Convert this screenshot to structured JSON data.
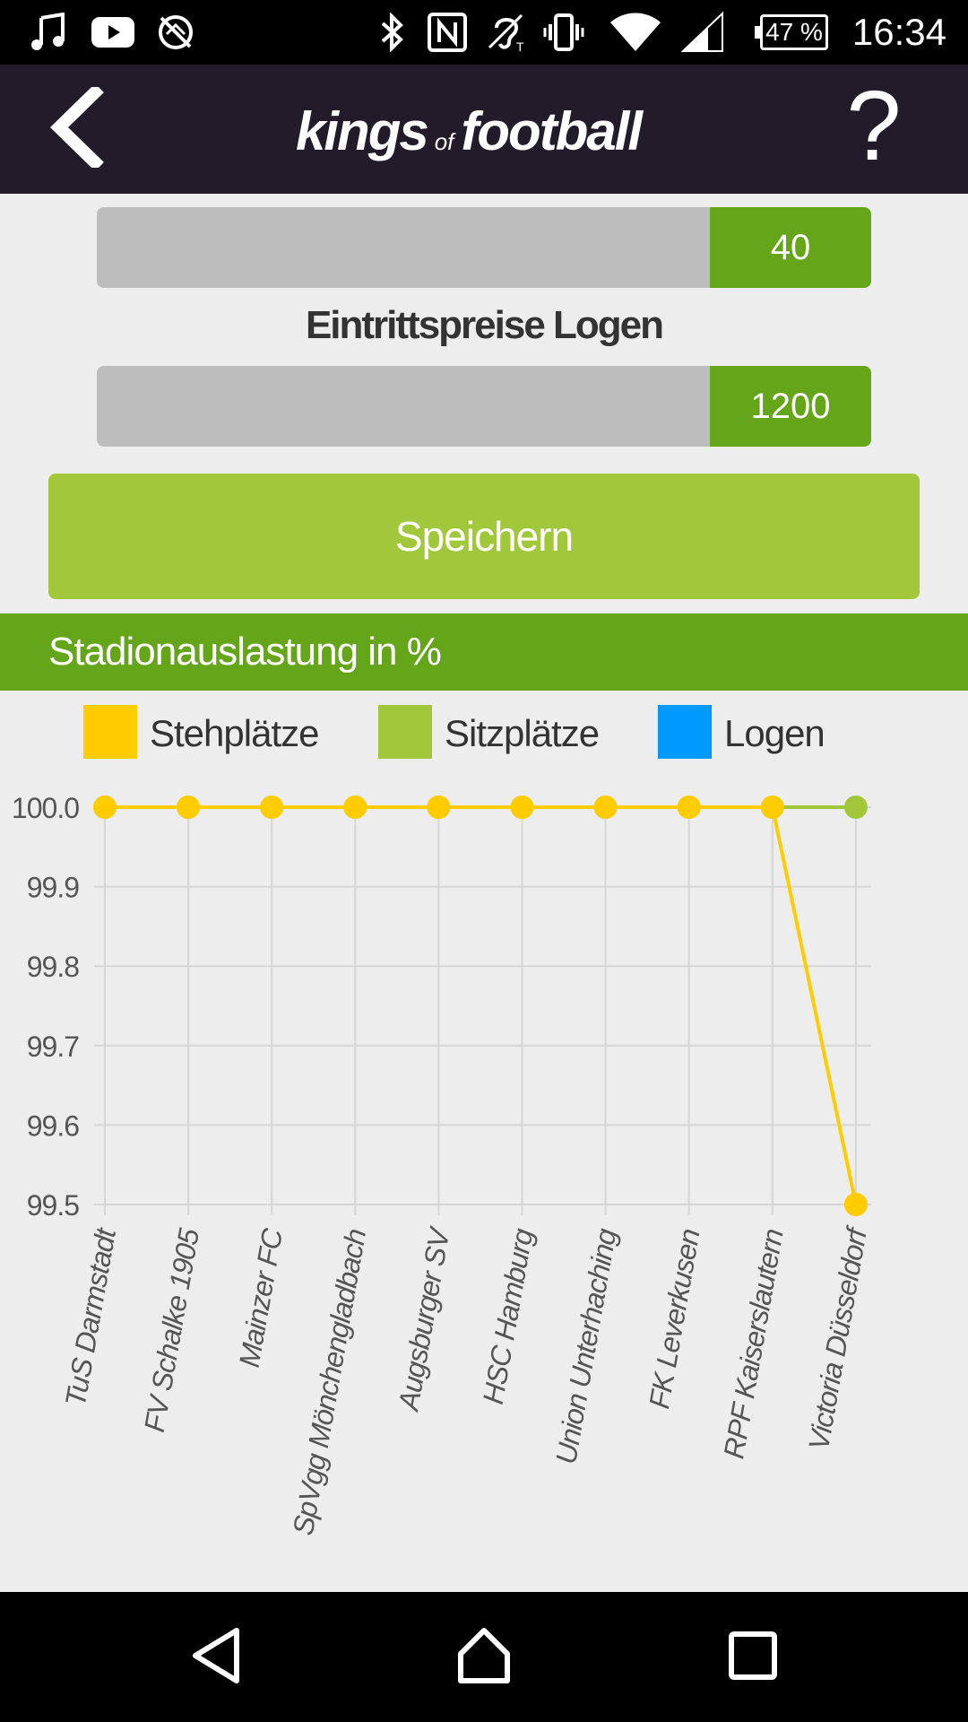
{
  "status_bar": {
    "time": "16:34",
    "battery": "47 %",
    "icons": [
      "music-icon",
      "youtube-icon",
      "no-sync-icon",
      "bluetooth-icon",
      "nfc-icon",
      "hearing-aid-icon",
      "vibrate-icon",
      "wifi-icon",
      "signal-icon"
    ]
  },
  "app_bar": {
    "logo_word1": "kings",
    "logo_of": "of",
    "logo_word2": "football",
    "help_label": "?"
  },
  "sliders": [
    {
      "value": "40"
    },
    {
      "label": "Eintrittspreise Logen",
      "value": "1200"
    }
  ],
  "save_button": {
    "label": "Speichern"
  },
  "chart_header": {
    "title": "Stadionauslastung in %"
  },
  "chart_data": {
    "type": "line",
    "legend": [
      {
        "name": "Stehplätze",
        "color": "#ffcc00"
      },
      {
        "name": "Sitzplätze",
        "color": "#a0c83a"
      },
      {
        "name": "Logen",
        "color": "#0099ff"
      }
    ],
    "categories": [
      "TuS Darmstadt",
      "FV Schalke 1905",
      "Mainzer FC",
      "SpVgg Mönchengladbach",
      "Augsburger SV",
      "HSC Hamburg",
      "Union Unterhaching",
      "FK Leverkusen",
      "RPF Kaiserslautern",
      "Victoria Düsseldorf"
    ],
    "series": [
      {
        "name": "Sitzplätze",
        "color": "#a0c83a",
        "values": [
          100.0,
          100.0,
          100.0,
          100.0,
          100.0,
          100.0,
          100.0,
          100.0,
          100.0,
          100.0
        ]
      },
      {
        "name": "Stehplätze",
        "color": "#ffcc00",
        "values": [
          100.0,
          100.0,
          100.0,
          100.0,
          100.0,
          100.0,
          100.0,
          100.0,
          100.0,
          99.5
        ]
      }
    ],
    "y_ticks": [
      "100.0",
      "99.9",
      "99.8",
      "99.7",
      "99.6",
      "99.5"
    ],
    "ylim": [
      99.5,
      100.0
    ],
    "grid": true,
    "legend_position": "top"
  }
}
